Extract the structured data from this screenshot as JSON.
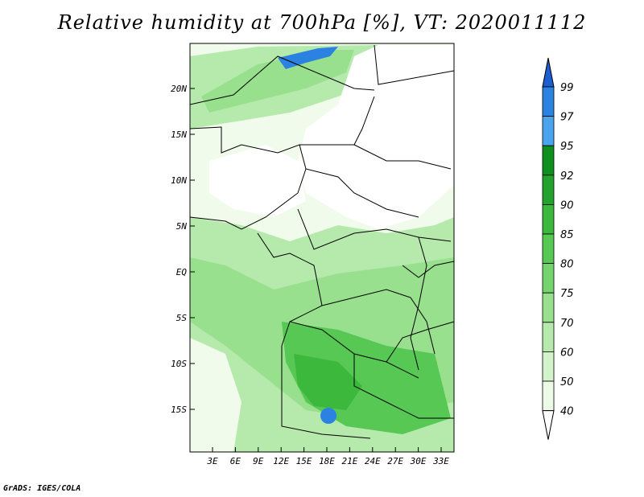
{
  "title": "Relative humidity at 700hPa [%], VT: 2020011112",
  "footer": "GrADS: IGES/COLA",
  "map": {
    "lat_labels": [
      "20N",
      "15N",
      "10N",
      "5N",
      "EQ",
      "5S",
      "10S",
      "15S"
    ],
    "lon_labels": [
      "3E",
      "6E",
      "9E",
      "12E",
      "15E",
      "18E",
      "21E",
      "24E",
      "27E",
      "30E",
      "33E"
    ]
  },
  "colorbar": {
    "levels": [
      "99",
      "97",
      "95",
      "92",
      "90",
      "85",
      "80",
      "75",
      "70",
      "60",
      "50",
      "40"
    ],
    "colors": [
      "#1c5fd1",
      "#2b82e0",
      "#4aa5ee",
      "#0e8f1e",
      "#23a32e",
      "#3cb83d",
      "#56c853",
      "#76d46e",
      "#98e08d",
      "#b6eaad",
      "#d3f3cb",
      "#ecfae6",
      "#ffffff"
    ]
  }
}
